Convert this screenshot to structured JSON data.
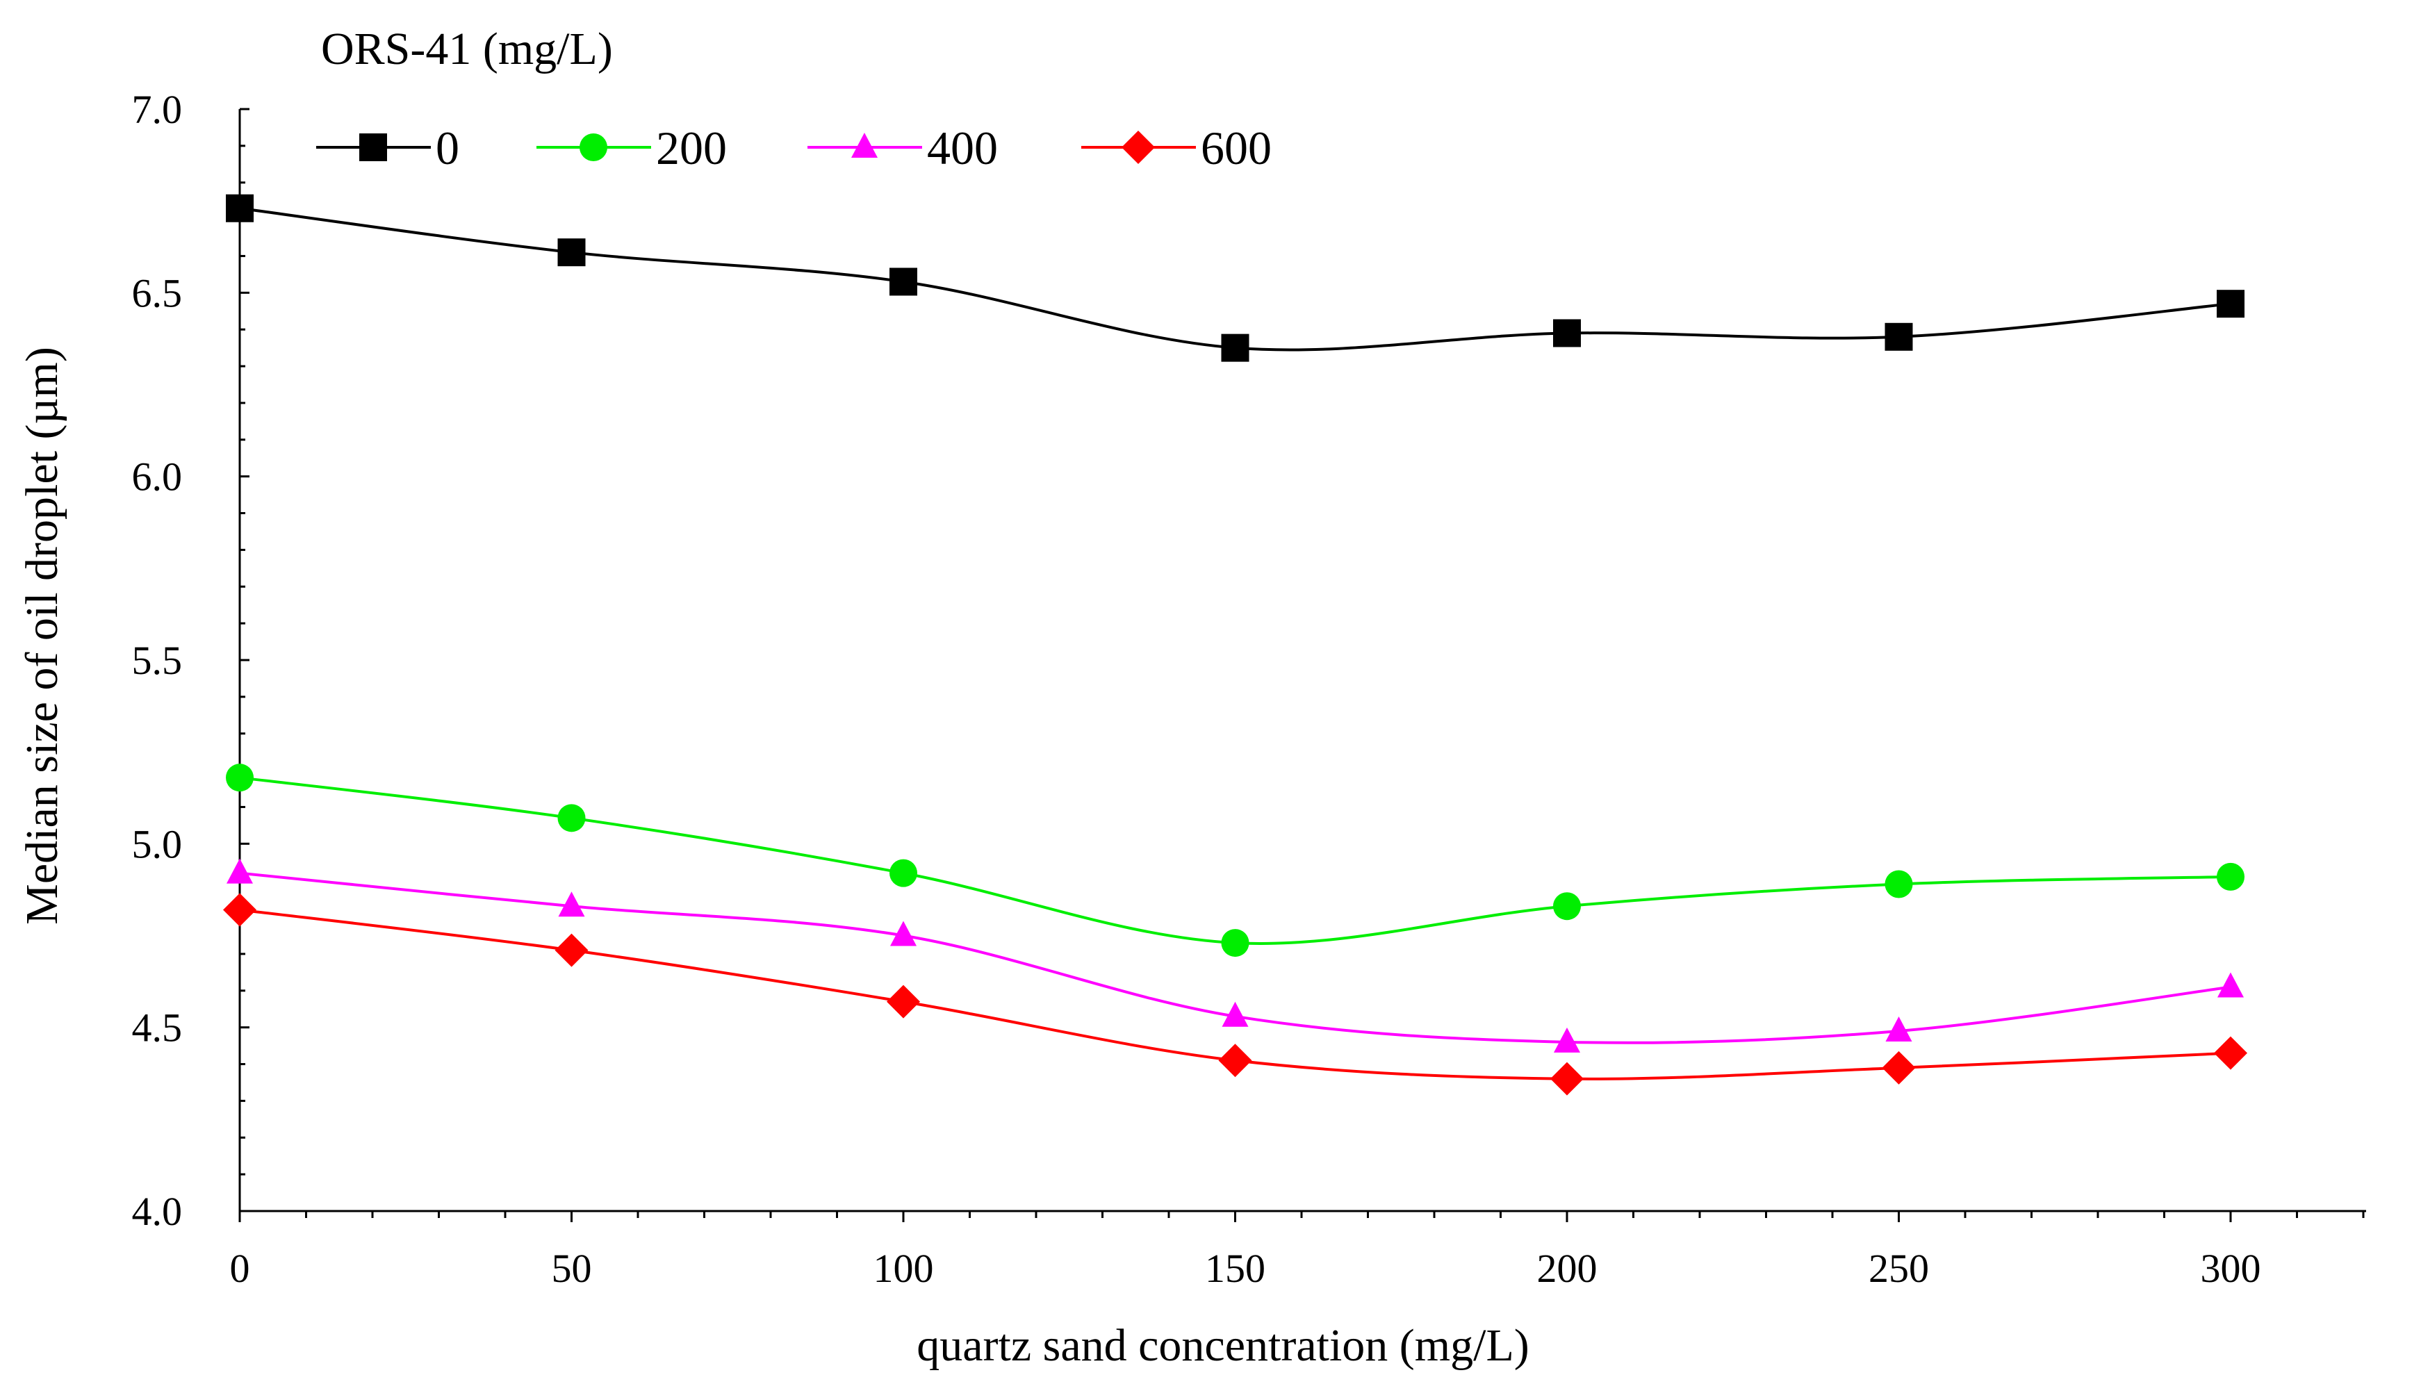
{
  "chart_data": {
    "type": "line",
    "title": "",
    "xlabel": "quartz sand concentration (mg/L)",
    "ylabel": "Median size of oil droplet  (µm)",
    "x": [
      0,
      50,
      100,
      150,
      200,
      250,
      300
    ],
    "x_tick_labels": [
      "0",
      "50",
      "100",
      "150",
      "200",
      "250",
      "300"
    ],
    "y_tick_labels": [
      "4.0",
      "4.5",
      "5.0",
      "5.5",
      "6.0",
      "6.5",
      "7.0"
    ],
    "xlim": [
      0,
      320
    ],
    "ylim": [
      4.0,
      7.0
    ],
    "grid": false,
    "legend": {
      "title": "ORS-41 (mg/L)",
      "placement": "top-left"
    },
    "series": [
      {
        "name": "0",
        "color": "#000000",
        "marker": "square",
        "values": [
          6.73,
          6.61,
          6.53,
          6.35,
          6.39,
          6.38,
          6.47
        ]
      },
      {
        "name": "200",
        "color": "#00ee00",
        "marker": "circle",
        "values": [
          5.18,
          5.07,
          4.92,
          4.73,
          4.83,
          4.89,
          4.91
        ]
      },
      {
        "name": "400",
        "color": "#ff00ff",
        "marker": "triangle",
        "values": [
          4.92,
          4.83,
          4.75,
          4.53,
          4.46,
          4.49,
          4.61
        ]
      },
      {
        "name": "600",
        "color": "#ff0000",
        "marker": "diamond",
        "values": [
          4.82,
          4.71,
          4.57,
          4.41,
          4.36,
          4.39,
          4.43
        ]
      }
    ]
  }
}
